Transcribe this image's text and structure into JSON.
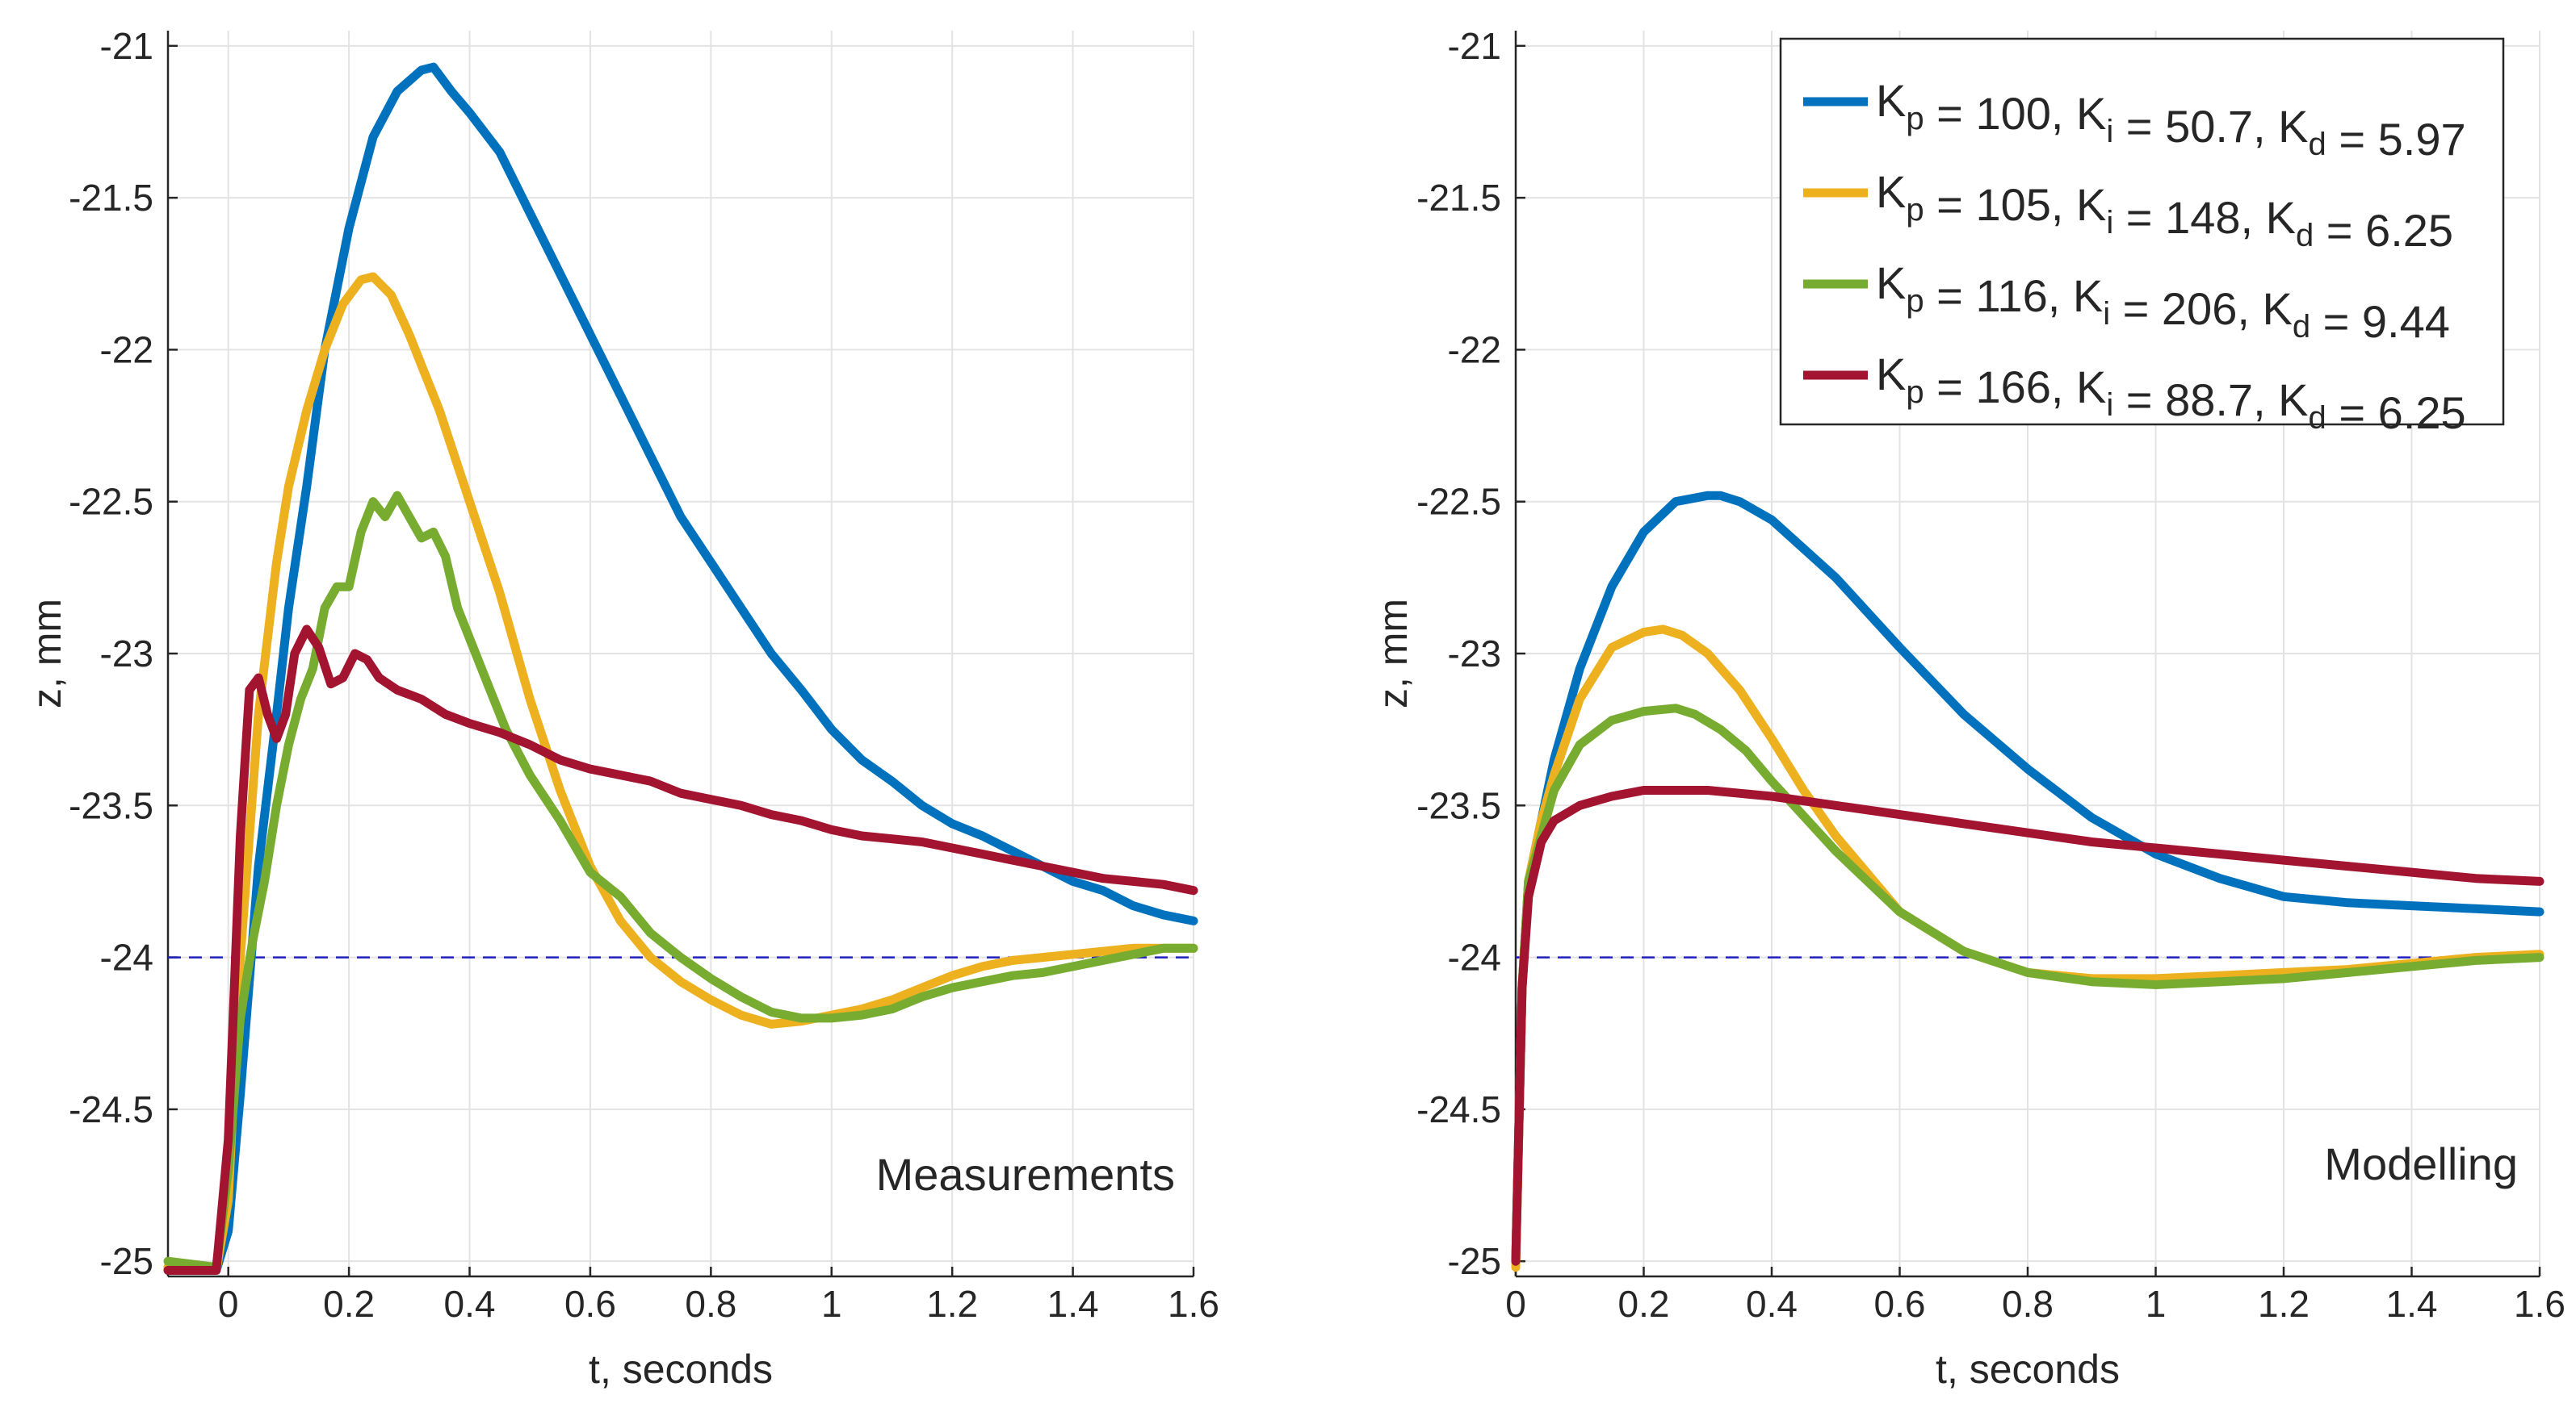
{
  "chart_data": [
    {
      "type": "line",
      "xlabel": "t, seconds",
      "ylabel": "z, mm",
      "annotation": "Measurements",
      "xlim": [
        -0.1,
        1.6
      ],
      "ylim": [
        -25.05,
        -20.95
      ],
      "xticks": [
        0,
        0.2,
        0.4,
        0.6,
        0.8,
        1,
        1.2,
        1.4,
        1.6
      ],
      "xtick_labels": [
        "0",
        "0.2",
        "0.4",
        "0.6",
        "0.8",
        "1",
        "1.2",
        "1.4",
        "1.6"
      ],
      "yticks": [
        -25,
        -24.5,
        -24,
        -23.5,
        -23,
        -22.5,
        -22,
        -21.5,
        -21
      ],
      "ytick_labels": [
        "-25",
        "-24.5",
        "-24",
        "-23.5",
        "-23",
        "-22.5",
        "-22",
        "-21.5",
        "-21"
      ],
      "grid": true,
      "reference_line": {
        "y": -24,
        "style": "dashed",
        "color": "#1f1fbf"
      },
      "series": [
        {
          "name": "Kp = 100, Ki = 50.7, Kd = 5.97",
          "color": "#0072BD",
          "x": [
            -0.1,
            -0.02,
            0,
            0.02,
            0.05,
            0.08,
            0.1,
            0.13,
            0.16,
            0.2,
            0.24,
            0.28,
            0.32,
            0.34,
            0.37,
            0.4,
            0.45,
            0.5,
            0.55,
            0.6,
            0.65,
            0.7,
            0.75,
            0.8,
            0.85,
            0.9,
            0.95,
            1.0,
            1.05,
            1.1,
            1.15,
            1.2,
            1.25,
            1.3,
            1.35,
            1.4,
            1.45,
            1.5,
            1.55,
            1.6
          ],
          "y": [
            -25.02,
            -25.03,
            -24.9,
            -24.45,
            -23.7,
            -23.2,
            -22.85,
            -22.45,
            -22.0,
            -21.6,
            -21.3,
            -21.15,
            -21.08,
            -21.07,
            -21.15,
            -21.22,
            -21.35,
            -21.55,
            -21.75,
            -21.95,
            -22.15,
            -22.35,
            -22.55,
            -22.7,
            -22.85,
            -23.0,
            -23.12,
            -23.25,
            -23.35,
            -23.42,
            -23.5,
            -23.56,
            -23.6,
            -23.65,
            -23.7,
            -23.75,
            -23.78,
            -23.83,
            -23.86,
            -23.88
          ]
        },
        {
          "name": "Kp = 105, Ki = 148, Kd = 6.25",
          "color": "#EDB120",
          "x": [
            -0.1,
            -0.02,
            0,
            0.02,
            0.05,
            0.08,
            0.1,
            0.13,
            0.16,
            0.19,
            0.22,
            0.24,
            0.27,
            0.3,
            0.35,
            0.4,
            0.45,
            0.5,
            0.55,
            0.6,
            0.65,
            0.7,
            0.75,
            0.8,
            0.85,
            0.9,
            0.95,
            1.0,
            1.05,
            1.1,
            1.15,
            1.2,
            1.25,
            1.3,
            1.35,
            1.4,
            1.45,
            1.5,
            1.55,
            1.6
          ],
          "y": [
            -25.02,
            -25.03,
            -24.8,
            -24.0,
            -23.2,
            -22.7,
            -22.45,
            -22.2,
            -22.0,
            -21.85,
            -21.77,
            -21.76,
            -21.82,
            -21.95,
            -22.2,
            -22.5,
            -22.8,
            -23.15,
            -23.45,
            -23.7,
            -23.88,
            -24.0,
            -24.08,
            -24.14,
            -24.19,
            -24.22,
            -24.21,
            -24.19,
            -24.17,
            -24.14,
            -24.1,
            -24.06,
            -24.03,
            -24.01,
            -24.0,
            -23.99,
            -23.98,
            -23.97,
            -23.97,
            -23.97
          ]
        },
        {
          "name": "Kp = 116, Ki = 206, Kd = 9.44",
          "color": "#77AC30",
          "x": [
            -0.1,
            -0.02,
            0,
            0.02,
            0.04,
            0.06,
            0.08,
            0.1,
            0.12,
            0.14,
            0.16,
            0.18,
            0.2,
            0.22,
            0.24,
            0.26,
            0.28,
            0.3,
            0.32,
            0.34,
            0.36,
            0.38,
            0.4,
            0.43,
            0.46,
            0.5,
            0.55,
            0.6,
            0.65,
            0.7,
            0.75,
            0.8,
            0.85,
            0.9,
            0.95,
            1.0,
            1.05,
            1.1,
            1.15,
            1.2,
            1.25,
            1.3,
            1.35,
            1.4,
            1.45,
            1.5,
            1.55,
            1.6
          ],
          "y": [
            -25.0,
            -25.02,
            -24.7,
            -24.2,
            -23.95,
            -23.75,
            -23.5,
            -23.3,
            -23.15,
            -23.05,
            -22.85,
            -22.78,
            -22.78,
            -22.6,
            -22.5,
            -22.55,
            -22.48,
            -22.55,
            -22.62,
            -22.6,
            -22.68,
            -22.85,
            -22.95,
            -23.1,
            -23.25,
            -23.4,
            -23.55,
            -23.72,
            -23.8,
            -23.92,
            -24.0,
            -24.07,
            -24.13,
            -24.18,
            -24.2,
            -24.2,
            -24.19,
            -24.17,
            -24.13,
            -24.1,
            -24.08,
            -24.06,
            -24.05,
            -24.03,
            -24.01,
            -23.99,
            -23.97,
            -23.97
          ]
        },
        {
          "name": "Kp = 166, Ki = 88.7, Kd = 6.25",
          "color": "#A2142F",
          "x": [
            -0.1,
            -0.02,
            0,
            0.02,
            0.035,
            0.05,
            0.065,
            0.08,
            0.095,
            0.11,
            0.13,
            0.15,
            0.17,
            0.19,
            0.21,
            0.23,
            0.25,
            0.28,
            0.32,
            0.36,
            0.4,
            0.45,
            0.5,
            0.55,
            0.6,
            0.65,
            0.7,
            0.75,
            0.8,
            0.85,
            0.9,
            0.95,
            1.0,
            1.05,
            1.1,
            1.15,
            1.2,
            1.25,
            1.3,
            1.35,
            1.4,
            1.45,
            1.5,
            1.55,
            1.6
          ],
          "y": [
            -25.03,
            -25.03,
            -24.6,
            -23.6,
            -23.12,
            -23.08,
            -23.2,
            -23.28,
            -23.2,
            -23.0,
            -22.92,
            -22.98,
            -23.1,
            -23.08,
            -23.0,
            -23.02,
            -23.08,
            -23.12,
            -23.15,
            -23.2,
            -23.23,
            -23.26,
            -23.3,
            -23.35,
            -23.38,
            -23.4,
            -23.42,
            -23.46,
            -23.48,
            -23.5,
            -23.53,
            -23.55,
            -23.58,
            -23.6,
            -23.61,
            -23.62,
            -23.64,
            -23.66,
            -23.68,
            -23.7,
            -23.72,
            -23.74,
            -23.75,
            -23.76,
            -23.78
          ]
        }
      ]
    },
    {
      "type": "line",
      "xlabel": "t, seconds",
      "ylabel": "z, mm",
      "annotation": "Modelling",
      "xlim": [
        0,
        1.6
      ],
      "ylim": [
        -25.05,
        -20.95
      ],
      "xticks": [
        0,
        0.2,
        0.4,
        0.6,
        0.8,
        1,
        1.2,
        1.4,
        1.6
      ],
      "xtick_labels": [
        "0",
        "0.2",
        "0.4",
        "0.6",
        "0.8",
        "1",
        "1.2",
        "1.4",
        "1.6"
      ],
      "yticks": [
        -25,
        -24.5,
        -24,
        -23.5,
        -23,
        -22.5,
        -22,
        -21.5,
        -21
      ],
      "ytick_labels": [
        "-25",
        "-24.5",
        "-24",
        "-23.5",
        "-23",
        "-22.5",
        "-22",
        "-21.5",
        "-21"
      ],
      "grid": true,
      "legend_position": "top-right",
      "reference_line": {
        "y": -24,
        "style": "dashed",
        "color": "#1f1fbf"
      },
      "series": [
        {
          "name": "Kp = 100, Ki = 50.7, Kd = 5.97",
          "color": "#0072BD",
          "legend": {
            "Kp": "100",
            "Ki": "50.7",
            "Kd": "5.97"
          },
          "x": [
            0,
            0.01,
            0.02,
            0.04,
            0.06,
            0.1,
            0.15,
            0.2,
            0.25,
            0.3,
            0.32,
            0.35,
            0.4,
            0.5,
            0.6,
            0.7,
            0.8,
            0.9,
            1.0,
            1.1,
            1.2,
            1.3,
            1.4,
            1.5,
            1.6
          ],
          "y": [
            -25.0,
            -24.1,
            -23.75,
            -23.55,
            -23.35,
            -23.05,
            -22.78,
            -22.6,
            -22.5,
            -22.48,
            -22.48,
            -22.5,
            -22.56,
            -22.75,
            -22.98,
            -23.2,
            -23.38,
            -23.54,
            -23.66,
            -23.74,
            -23.8,
            -23.82,
            -23.83,
            -23.84,
            -23.85
          ]
        },
        {
          "name": "Kp = 105, Ki = 148, Kd = 6.25",
          "color": "#EDB120",
          "legend": {
            "Kp": "105",
            "Ki": "148",
            "Kd": "6.25"
          },
          "x": [
            0,
            0.01,
            0.02,
            0.04,
            0.06,
            0.1,
            0.15,
            0.2,
            0.23,
            0.26,
            0.3,
            0.35,
            0.4,
            0.45,
            0.5,
            0.6,
            0.7,
            0.8,
            0.9,
            1.0,
            1.1,
            1.2,
            1.3,
            1.4,
            1.5,
            1.6
          ],
          "y": [
            -25.02,
            -24.1,
            -23.75,
            -23.55,
            -23.4,
            -23.15,
            -22.98,
            -22.93,
            -22.92,
            -22.94,
            -23.0,
            -23.12,
            -23.28,
            -23.45,
            -23.6,
            -23.85,
            -23.98,
            -24.05,
            -24.07,
            -24.07,
            -24.06,
            -24.05,
            -24.04,
            -24.02,
            -24.0,
            -23.99
          ]
        },
        {
          "name": "Kp = 116, Ki = 206, Kd = 9.44",
          "color": "#77AC30",
          "legend": {
            "Kp": "116",
            "Ki": "206",
            "Kd": "9.44"
          },
          "x": [
            0,
            0.01,
            0.02,
            0.04,
            0.06,
            0.1,
            0.15,
            0.2,
            0.25,
            0.28,
            0.32,
            0.36,
            0.4,
            0.5,
            0.6,
            0.7,
            0.8,
            0.9,
            1.0,
            1.1,
            1.2,
            1.3,
            1.4,
            1.5,
            1.6
          ],
          "y": [
            -25.0,
            -24.1,
            -23.75,
            -23.6,
            -23.45,
            -23.3,
            -23.22,
            -23.19,
            -23.18,
            -23.2,
            -23.25,
            -23.32,
            -23.42,
            -23.65,
            -23.85,
            -23.98,
            -24.05,
            -24.08,
            -24.09,
            -24.08,
            -24.07,
            -24.05,
            -24.03,
            -24.01,
            -24.0
          ]
        },
        {
          "name": "Kp = 166, Ki = 88.7, Kd = 6.25",
          "color": "#A2142F",
          "legend": {
            "Kp": "166",
            "Ki": "88.7",
            "Kd": "6.25"
          },
          "x": [
            0,
            0.01,
            0.02,
            0.04,
            0.06,
            0.1,
            0.15,
            0.2,
            0.25,
            0.3,
            0.4,
            0.5,
            0.6,
            0.7,
            0.8,
            0.9,
            1.0,
            1.1,
            1.2,
            1.3,
            1.4,
            1.5,
            1.6
          ],
          "y": [
            -25.0,
            -24.1,
            -23.8,
            -23.62,
            -23.55,
            -23.5,
            -23.47,
            -23.45,
            -23.45,
            -23.45,
            -23.47,
            -23.5,
            -23.53,
            -23.56,
            -23.59,
            -23.62,
            -23.64,
            -23.66,
            -23.68,
            -23.7,
            -23.72,
            -23.74,
            -23.75
          ]
        }
      ]
    }
  ]
}
